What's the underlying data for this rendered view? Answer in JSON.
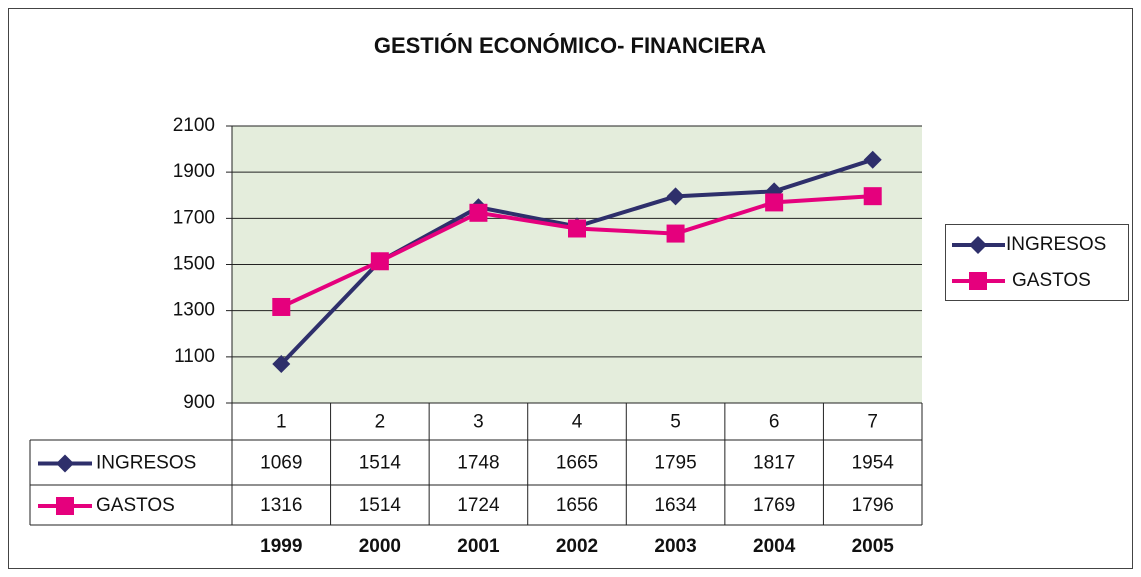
{
  "chart_data": {
    "type": "line",
    "title": "GESTIÓN ECONÓMICO- FINANCIERA",
    "categories": [
      "1",
      "2",
      "3",
      "4",
      "5",
      "6",
      "7"
    ],
    "years": [
      "1999",
      "2000",
      "2001",
      "2002",
      "2003",
      "2004",
      "2005"
    ],
    "series": [
      {
        "name": "INGRESOS",
        "color": "#2e2f6b",
        "marker": "diamond",
        "values": [
          1069,
          1514,
          1748,
          1665,
          1795,
          1817,
          1954
        ]
      },
      {
        "name": "GASTOS",
        "color": "#e5007d",
        "marker": "square",
        "values": [
          1316,
          1514,
          1724,
          1656,
          1634,
          1769,
          1796
        ]
      }
    ],
    "ylim": [
      900,
      2100
    ],
    "yticks": [
      900,
      1100,
      1300,
      1500,
      1700,
      1900,
      2100
    ],
    "grid": true,
    "legend": "right"
  }
}
